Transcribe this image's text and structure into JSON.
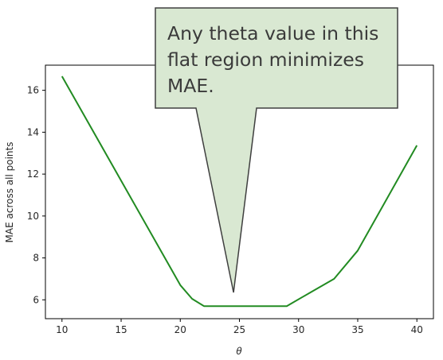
{
  "chart_data": {
    "type": "line",
    "title": "",
    "xlabel": "θ",
    "ylabel": "MAE across all points",
    "xlim": [
      8.6,
      41.4
    ],
    "ylim": [
      5.1,
      17.2
    ],
    "xticks": [
      10,
      15,
      20,
      25,
      30,
      35,
      40
    ],
    "yticks": [
      6,
      8,
      10,
      12,
      14,
      16
    ],
    "grid": false,
    "legend": "none",
    "series": [
      {
        "color": "#228b22",
        "x": [
          10,
          20,
          21,
          22,
          23,
          24,
          25,
          26,
          27,
          28,
          29,
          31,
          33,
          35,
          40
        ],
        "y": [
          16.67,
          6.7,
          6.05,
          5.7,
          5.7,
          5.7,
          5.7,
          5.7,
          5.7,
          5.7,
          5.7,
          6.35,
          7.0,
          8.35,
          13.37
        ]
      }
    ],
    "annotations": [
      {
        "lines": [
          "Any theta value in this",
          "flat region minimizes",
          "MAE."
        ],
        "pointer_x": 24.5,
        "pointer_y": 6.35,
        "fill": "#d9e8d2"
      }
    ]
  }
}
